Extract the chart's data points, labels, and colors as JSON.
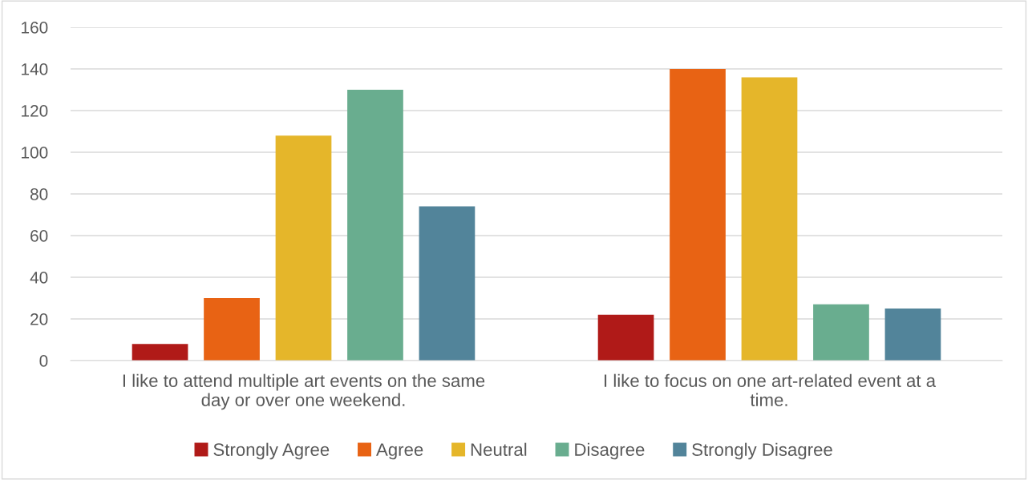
{
  "chart_data": {
    "type": "bar",
    "categories": [
      "I like to attend multiple art events on the same day or over one weekend.",
      "I like to focus on one art-related event at a time."
    ],
    "series": [
      {
        "name": "Strongly Agree",
        "color": "#b01a18",
        "values": [
          8,
          22
        ]
      },
      {
        "name": "Agree",
        "color": "#e86314",
        "values": [
          30,
          140
        ]
      },
      {
        "name": "Neutral",
        "color": "#e5b62a",
        "values": [
          108,
          136
        ]
      },
      {
        "name": "Disagree",
        "color": "#69ad8f",
        "values": [
          130,
          27
        ]
      },
      {
        "name": "Strongly Disagree",
        "color": "#52849a",
        "values": [
          74,
          25
        ]
      }
    ],
    "ylim": [
      0,
      160
    ],
    "yticks": [
      0,
      20,
      40,
      60,
      80,
      100,
      120,
      140,
      160
    ],
    "grid": "y",
    "legend": "bottom"
  }
}
